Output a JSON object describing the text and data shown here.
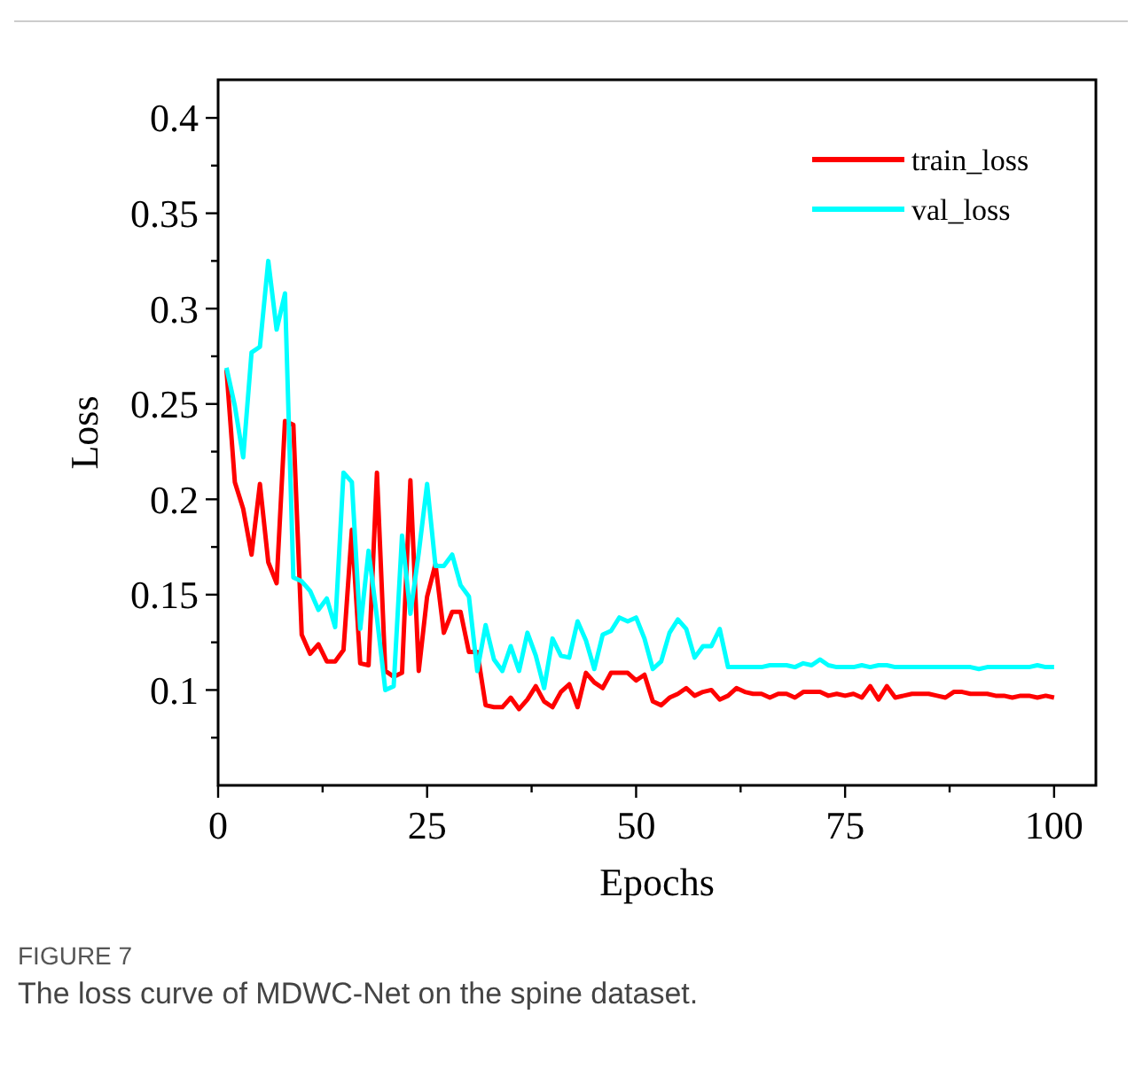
{
  "chart_data": {
    "type": "line",
    "xlabel": "Epochs",
    "ylabel": "Loss",
    "x": [
      1,
      2,
      3,
      4,
      5,
      6,
      7,
      8,
      9,
      10,
      11,
      12,
      13,
      14,
      15,
      16,
      17,
      18,
      19,
      20,
      21,
      22,
      23,
      24,
      25,
      26,
      27,
      28,
      29,
      30,
      31,
      32,
      33,
      34,
      35,
      36,
      37,
      38,
      39,
      40,
      41,
      42,
      43,
      44,
      45,
      46,
      47,
      48,
      49,
      50,
      51,
      52,
      53,
      54,
      55,
      56,
      57,
      58,
      59,
      60,
      61,
      62,
      63,
      64,
      65,
      66,
      67,
      68,
      69,
      70,
      71,
      72,
      73,
      74,
      75,
      76,
      77,
      78,
      79,
      80,
      81,
      82,
      83,
      84,
      85,
      86,
      87,
      88,
      89,
      90,
      91,
      92,
      93,
      94,
      95,
      96,
      97,
      98,
      99,
      100
    ],
    "series": [
      {
        "name": "train_loss",
        "color": "#ff0000",
        "values": [
          0.268,
          0.209,
          0.195,
          0.171,
          0.208,
          0.167,
          0.156,
          0.241,
          0.239,
          0.129,
          0.119,
          0.124,
          0.115,
          0.115,
          0.121,
          0.184,
          0.114,
          0.113,
          0.214,
          0.11,
          0.107,
          0.109,
          0.21,
          0.11,
          0.149,
          0.166,
          0.13,
          0.141,
          0.141,
          0.12,
          0.12,
          0.092,
          0.091,
          0.091,
          0.096,
          0.09,
          0.095,
          0.102,
          0.094,
          0.091,
          0.099,
          0.103,
          0.091,
          0.109,
          0.104,
          0.101,
          0.109,
          0.109,
          0.109,
          0.105,
          0.108,
          0.094,
          0.092,
          0.096,
          0.098,
          0.101,
          0.097,
          0.099,
          0.1,
          0.095,
          0.097,
          0.101,
          0.099,
          0.098,
          0.098,
          0.096,
          0.098,
          0.098,
          0.096,
          0.099,
          0.099,
          0.099,
          0.097,
          0.098,
          0.097,
          0.098,
          0.096,
          0.102,
          0.095,
          0.102,
          0.096,
          0.097,
          0.098,
          0.098,
          0.098,
          0.097,
          0.096,
          0.099,
          0.099,
          0.098,
          0.098,
          0.098,
          0.097,
          0.097,
          0.096,
          0.097,
          0.097,
          0.096,
          0.097,
          0.096
        ]
      },
      {
        "name": "val_loss",
        "color": "#00ffff",
        "values": [
          0.269,
          0.249,
          0.222,
          0.277,
          0.28,
          0.325,
          0.289,
          0.308,
          0.159,
          0.157,
          0.152,
          0.142,
          0.148,
          0.133,
          0.214,
          0.209,
          0.132,
          0.173,
          0.138,
          0.1,
          0.102,
          0.181,
          0.14,
          0.172,
          0.208,
          0.165,
          0.165,
          0.171,
          0.155,
          0.149,
          0.11,
          0.134,
          0.116,
          0.11,
          0.123,
          0.11,
          0.13,
          0.118,
          0.101,
          0.127,
          0.118,
          0.117,
          0.136,
          0.126,
          0.111,
          0.129,
          0.131,
          0.138,
          0.136,
          0.138,
          0.127,
          0.111,
          0.115,
          0.13,
          0.137,
          0.132,
          0.117,
          0.123,
          0.123,
          0.132,
          0.112,
          0.112,
          0.112,
          0.112,
          0.112,
          0.113,
          0.113,
          0.113,
          0.112,
          0.114,
          0.113,
          0.116,
          0.113,
          0.112,
          0.112,
          0.112,
          0.113,
          0.112,
          0.113,
          0.113,
          0.112,
          0.112,
          0.112,
          0.112,
          0.112,
          0.112,
          0.112,
          0.112,
          0.112,
          0.112,
          0.111,
          0.112,
          0.112,
          0.112,
          0.112,
          0.112,
          0.112,
          0.113,
          0.112,
          0.112
        ]
      }
    ],
    "xlim": [
      0,
      105
    ],
    "xticks": [
      0,
      {
        "value": 12.5,
        "label": null
      },
      25,
      {
        "value": 37.5,
        "label": null
      },
      50,
      {
        "value": 62.5,
        "label": null
      },
      75,
      {
        "value": 87.5,
        "label": null
      },
      100
    ],
    "ylim": [
      0.05,
      0.42
    ],
    "yticks": [
      {
        "value": 0.075,
        "label": null
      },
      0.1,
      {
        "value": 0.125,
        "label": null
      },
      0.15,
      {
        "value": 0.175,
        "label": null
      },
      0.2,
      {
        "value": 0.225,
        "label": null
      },
      0.25,
      {
        "value": 0.275,
        "label": null
      },
      0.3,
      {
        "value": 0.325,
        "label": null
      },
      0.35,
      {
        "value": 0.375,
        "label": null
      },
      0.4
    ],
    "grid": false,
    "legend": "top right",
    "marker": "none",
    "line_style": "solid",
    "annotations": [
      "FIGURE 7",
      "The loss curve of MDWC-Net on the spine dataset."
    ]
  }
}
